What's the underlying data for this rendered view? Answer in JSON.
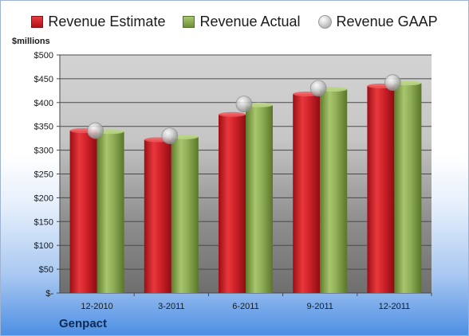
{
  "legend": {
    "estimate": "Revenue Estimate",
    "actual": "Revenue Actual",
    "gaap": "Revenue GAAP"
  },
  "ylabel": "$millions",
  "company": "Genpact",
  "chart_data": {
    "type": "bar",
    "categories": [
      "12-2010",
      "3-2011",
      "6-2011",
      "9-2011",
      "12-2011"
    ],
    "series": [
      {
        "name": "Revenue Estimate",
        "values": [
          341,
          322,
          375,
          418,
          435
        ],
        "color": "#c8191f"
      },
      {
        "name": "Revenue Actual",
        "values": [
          339,
          328,
          395,
          428,
          441
        ],
        "color": "#8eac57"
      },
      {
        "name": "Revenue GAAP",
        "values": [
          341,
          330,
          397,
          430,
          442
        ],
        "color": "#b0b0b0",
        "marker": "sphere"
      }
    ],
    "yticks": [
      "$-",
      "$50",
      "$100",
      "$150",
      "$200",
      "$250",
      "$300",
      "$350",
      "$400",
      "$450",
      "$500"
    ],
    "ylim": [
      0,
      500
    ],
    "ylabel": "$millions",
    "grid": true,
    "legend_position": "top"
  }
}
